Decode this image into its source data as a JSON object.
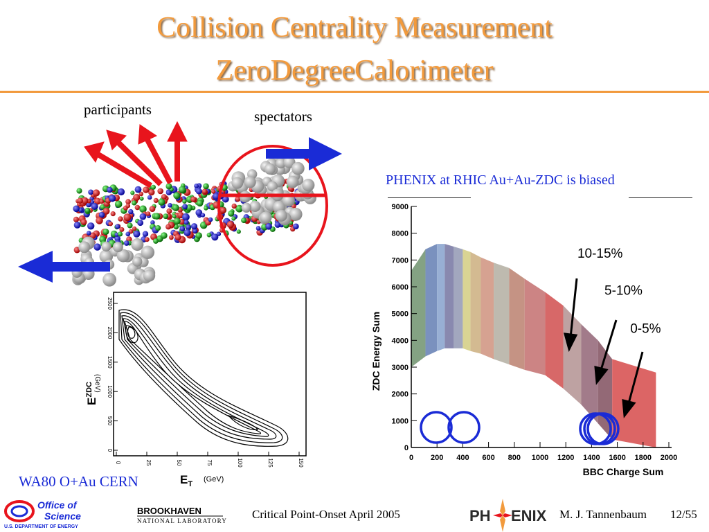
{
  "slide": {
    "title_line1": "Collision Centrality Measurement",
    "title_line2": "ZeroDegreeCalorimeter",
    "label_participants": "participants",
    "label_spectators": "spectators",
    "phenix_caption": "PHENIX at RHIC Au+Au-ZDC is biased",
    "wa80_caption": "WA80 O+Au CERN"
  },
  "wa80_plot": {
    "ylabel": "E",
    "ylabel_sub": "ZDC",
    "ylabel_unit": "(GeV)",
    "xlabel": "E",
    "xlabel_sub": "T",
    "xlabel_unit": "(GeV)",
    "yticks": [
      "2500",
      "2000",
      "1500",
      "1000",
      "500",
      "0"
    ],
    "xticks": [
      "0",
      "25",
      "50",
      "75",
      "100",
      "125",
      "150"
    ]
  },
  "chart_data": {
    "type": "heatmap",
    "title": "",
    "xlabel": "BBC Charge Sum",
    "ylabel": "ZDC Energy Sum",
    "xlim": [
      0,
      2000
    ],
    "ylim": [
      0,
      9000
    ],
    "xticks": [
      "0",
      "200",
      "400",
      "600",
      "800",
      "1000",
      "1200",
      "1400",
      "1600",
      "1800",
      "2000"
    ],
    "yticks": [
      "0",
      "1000",
      "2000",
      "3000",
      "4000",
      "5000",
      "6000",
      "7000",
      "8000",
      "9000"
    ],
    "annotations": [
      {
        "text": "10-15%",
        "x": 1290,
        "y": 7080
      },
      {
        "text": "5-10%",
        "x": 1500,
        "y": 5700
      },
      {
        "text": "0-5%",
        "x": 1700,
        "y": 4280
      }
    ],
    "bands": [
      {
        "x0": 0,
        "x1": 110,
        "y_outer": 6600,
        "y_inner": 3000,
        "color": "#7a9a78"
      },
      {
        "x0": 110,
        "x1": 200,
        "y_outer": 7400,
        "y_inner": 3400,
        "color": "#6f88b8"
      },
      {
        "x0": 200,
        "x1": 260,
        "y_outer": 7600,
        "y_inner": 3600,
        "color": "#8fa8d0"
      },
      {
        "x0": 260,
        "x1": 330,
        "y_outer": 7600,
        "y_inner": 3700,
        "color": "#7f7fa8"
      },
      {
        "x0": 330,
        "x1": 400,
        "y_outer": 7500,
        "y_inner": 3700,
        "color": "#9aa0b8"
      },
      {
        "x0": 400,
        "x1": 460,
        "y_outer": 7400,
        "y_inner": 3700,
        "color": "#d6d08a"
      },
      {
        "x0": 460,
        "x1": 540,
        "y_outer": 7300,
        "y_inner": 3600,
        "color": "#cfb488"
      },
      {
        "x0": 540,
        "x1": 640,
        "y_outer": 7100,
        "y_inner": 3500,
        "color": "#d29a88"
      },
      {
        "x0": 640,
        "x1": 760,
        "y_outer": 6900,
        "y_inner": 3300,
        "color": "#b9b4a8"
      },
      {
        "x0": 760,
        "x1": 880,
        "y_outer": 6700,
        "y_inner": 3100,
        "color": "#c08a7a"
      },
      {
        "x0": 880,
        "x1": 1040,
        "y_outer": 6300,
        "y_inner": 2900,
        "color": "#c87a7a"
      },
      {
        "x0": 1040,
        "x1": 1180,
        "y_outer": 5800,
        "y_inner": 2700,
        "color": "#d45b5b"
      },
      {
        "x0": 1180,
        "x1": 1320,
        "y_outer": 5300,
        "y_inner": 2200,
        "color": "#b89a9a"
      },
      {
        "x0": 1320,
        "x1": 1450,
        "y_outer": 4600,
        "y_inner": 1600,
        "color": "#9a7080"
      },
      {
        "x0": 1450,
        "x1": 1560,
        "y_outer": 4000,
        "y_inner": 900,
        "color": "#8a5c6a"
      },
      {
        "x0": 1560,
        "x1": 1900,
        "y_outer": 3300,
        "y_inner": 300,
        "color": "#d95858"
      }
    ]
  },
  "footer": {
    "office_line1": "Office of",
    "office_line2": "Science",
    "office_line3": "U.S. DEPARTMENT OF ENERGY",
    "bnl_line1": "BROOKHAVEN",
    "bnl_line2": "NATIONAL LABORATORY",
    "event": "Critical Point-Onset April 2005",
    "phenix_logo_a": "PH",
    "phenix_logo_b": "ENIX",
    "author": "M. J. Tannenbaum",
    "page": "12/55"
  },
  "colors": {
    "title": "#f29a3c",
    "arrow_red": "#e8141c",
    "arrow_blue": "#1a2bd6"
  }
}
